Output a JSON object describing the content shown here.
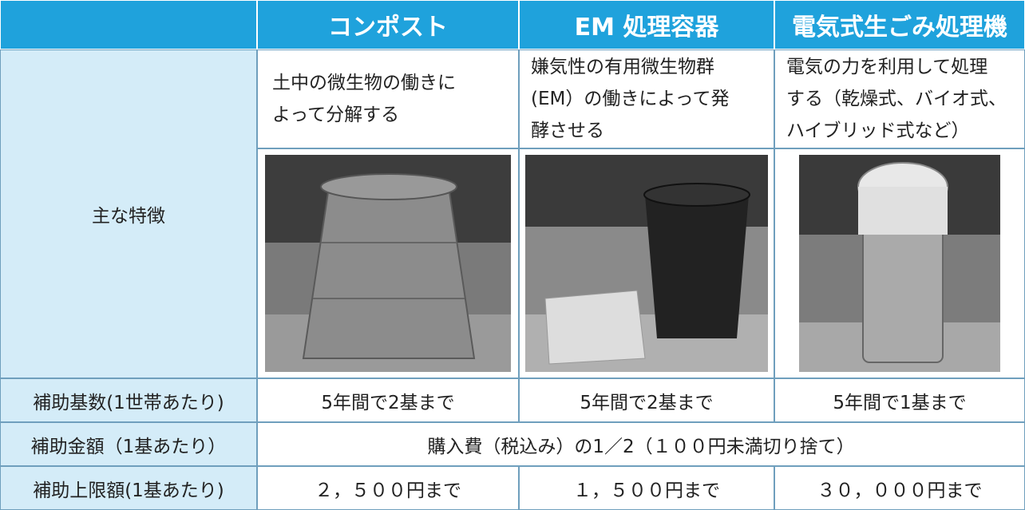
{
  "header": {
    "columns": [
      "コンポスト",
      "EM 処理容器",
      "電気式生ごみ処理機"
    ]
  },
  "features": {
    "label": "主な特徴",
    "descriptions": [
      [
        "土中の微生物の働きに",
        "よって分解する"
      ],
      [
        "嫌気性の有用微生物群",
        "(EM）の働きによって発",
        "酵させる"
      ],
      [
        "電気の力を利用して処理",
        "する（乾燥式、バイオ式、",
        "ハイブリッド式など）"
      ]
    ]
  },
  "rows": [
    {
      "label": "補助基数(1世帯あたり)",
      "values": [
        "5年間で2基まで",
        "5年間で2基まで",
        "5年間で1基まで"
      ]
    },
    {
      "label": "補助金額（1基あたり）",
      "values": [
        "購入費（税込み）の1／2（１００円未満切り捨て）"
      ]
    },
    {
      "label": "補助上限額(1基あたり)",
      "values": [
        "２，５００円まで",
        "１，５００円まで",
        "３０，０００円まで"
      ]
    }
  ]
}
